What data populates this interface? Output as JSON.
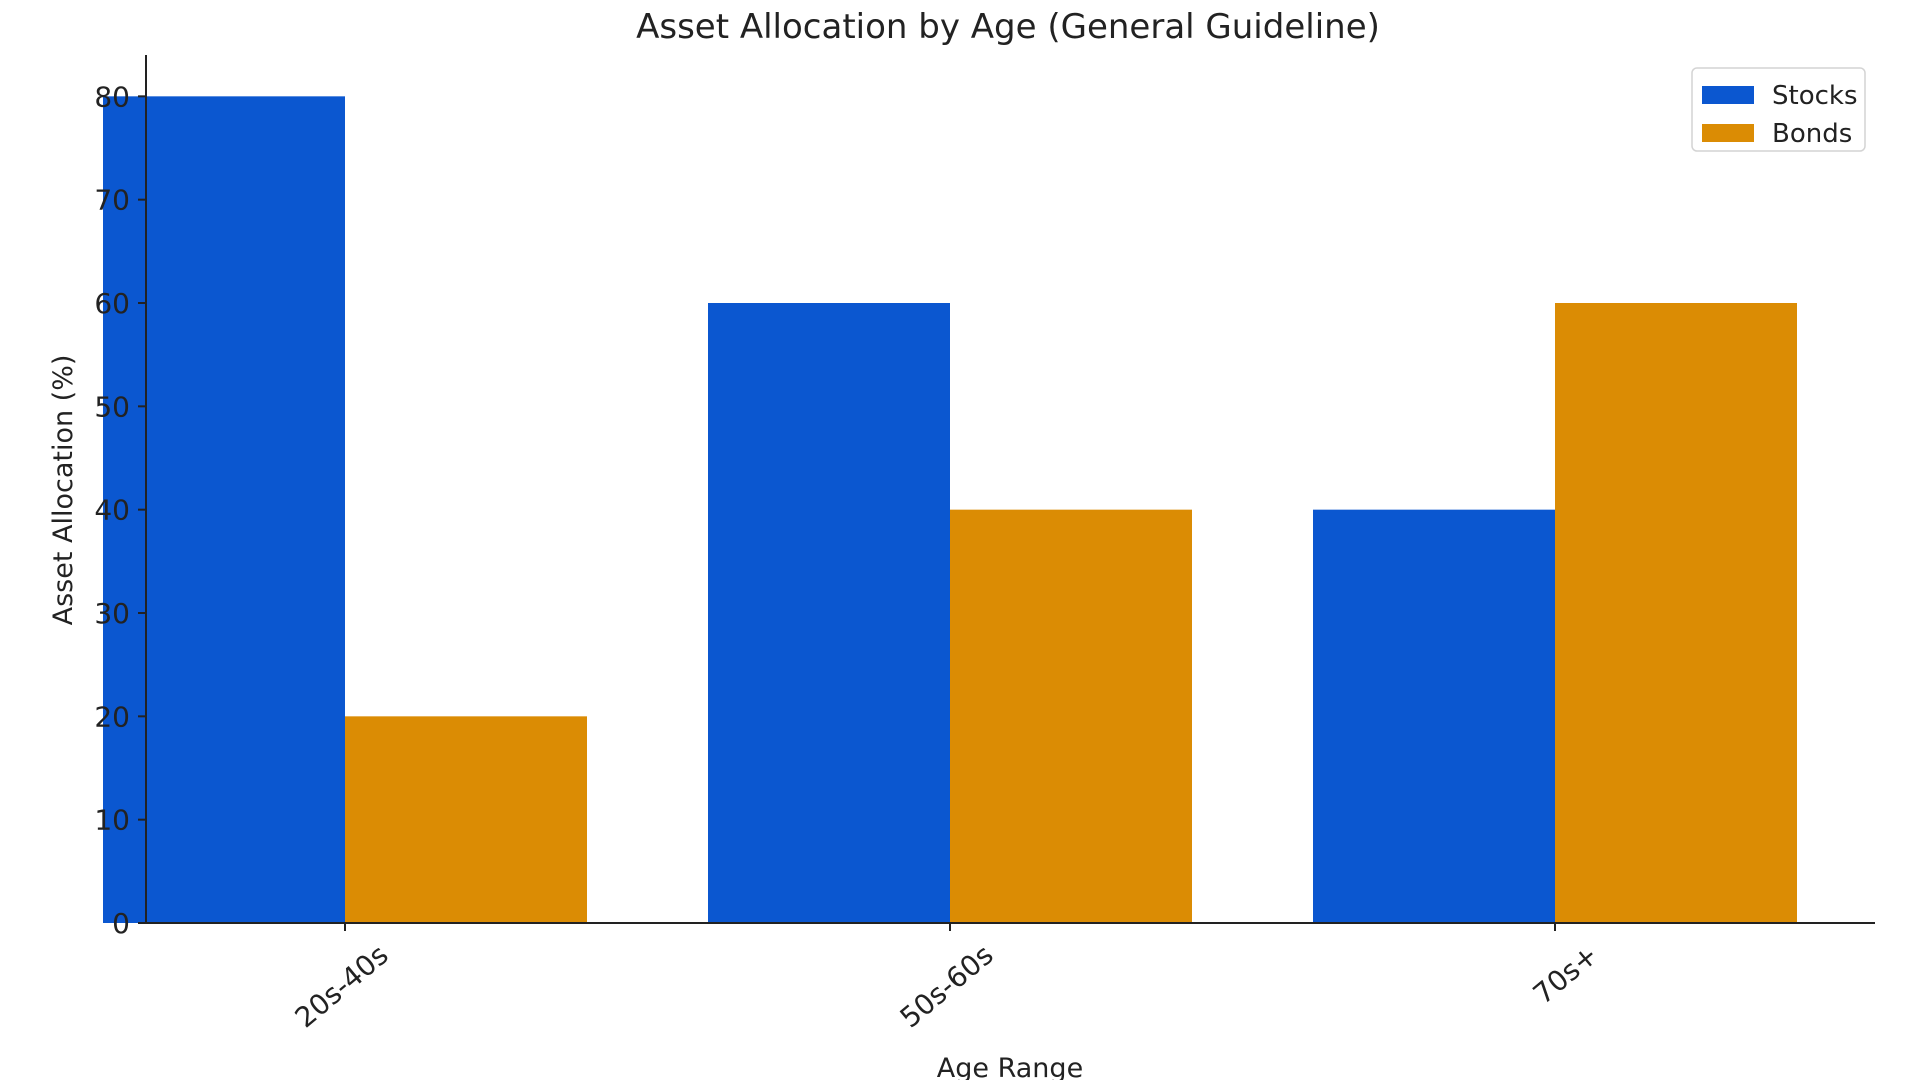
{
  "chart_data": {
    "type": "bar",
    "title": "Asset Allocation by Age (General Guideline)",
    "xlabel": "Age Range",
    "ylabel": "Asset Allocation (%)",
    "categories": [
      "20s-40s",
      "50s-60s",
      "70s+"
    ],
    "series": [
      {
        "name": "Stocks",
        "values": [
          80,
          60,
          40
        ],
        "color": "#0b57d0"
      },
      {
        "name": "Bonds",
        "values": [
          20,
          40,
          60
        ],
        "color": "#db8c04"
      }
    ],
    "ylim": [
      0,
      84
    ],
    "yticks": [
      0,
      10,
      20,
      30,
      40,
      50,
      60,
      70,
      80
    ],
    "grid": false,
    "legend_position": "top-right",
    "bars_overlap": true
  }
}
